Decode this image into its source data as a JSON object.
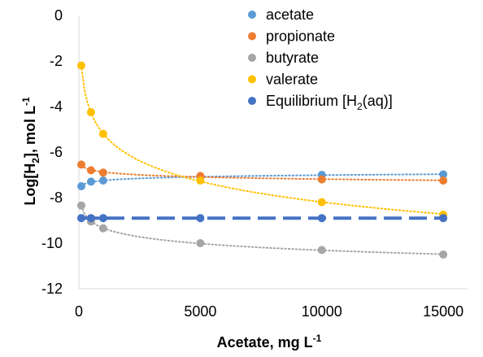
{
  "chart_data": {
    "type": "scatter",
    "title": "",
    "xlabel": {
      "main": "Acetate, mg L",
      "sup": "-1"
    },
    "ylabel": {
      "pre": "Log[H",
      "sub": "2",
      "post": "], mol L",
      "sup": "-1"
    },
    "xlim": [
      0,
      16000
    ],
    "ylim": [
      -12,
      0
    ],
    "x_ticks": [
      0,
      5000,
      10000,
      15000
    ],
    "y_ticks": [
      0,
      -2,
      -4,
      -6,
      -8,
      -10,
      -12
    ],
    "grid": false,
    "legend_position": "top-right",
    "series": [
      {
        "name": "acetate",
        "color": "#5B9BD5",
        "trendline": "dotted",
        "points": [
          [
            100,
            -7.5
          ],
          [
            500,
            -7.3
          ],
          [
            1000,
            -7.25
          ],
          [
            5000,
            -7.1
          ],
          [
            10000,
            -7.0
          ],
          [
            15000,
            -6.98
          ]
        ]
      },
      {
        "name": "propionate",
        "color": "#ED7D31",
        "trendline": "dotted",
        "points": [
          [
            100,
            -6.55
          ],
          [
            500,
            -6.8
          ],
          [
            1000,
            -6.9
          ],
          [
            5000,
            -7.05
          ],
          [
            10000,
            -7.2
          ],
          [
            15000,
            -7.25
          ]
        ]
      },
      {
        "name": "butyrate",
        "color": "#A5A5A5",
        "trendline": "dotted",
        "points": [
          [
            100,
            -8.35
          ],
          [
            500,
            -9.05
          ],
          [
            1000,
            -9.35
          ],
          [
            5000,
            -10.0
          ],
          [
            10000,
            -10.3
          ],
          [
            15000,
            -10.5
          ]
        ]
      },
      {
        "name": "valerate",
        "color": "#FFC000",
        "trendline": "dotted",
        "points": [
          [
            100,
            -2.2
          ],
          [
            500,
            -4.25
          ],
          [
            1000,
            -5.2
          ],
          [
            5000,
            -7.25
          ],
          [
            10000,
            -8.2
          ],
          [
            15000,
            -8.75
          ]
        ]
      },
      {
        "name": "Equilibrium [H2(aq)]",
        "legend_pre": "Equilibrium [H",
        "legend_sub": "2",
        "legend_post": "(aq)]",
        "color": "#4472C4",
        "trendline": "dashed",
        "points": [
          [
            100,
            -8.9
          ],
          [
            500,
            -8.9
          ],
          [
            1000,
            -8.9
          ],
          [
            5000,
            -8.9
          ],
          [
            10000,
            -8.9
          ],
          [
            15000,
            -8.9
          ]
        ]
      }
    ]
  }
}
